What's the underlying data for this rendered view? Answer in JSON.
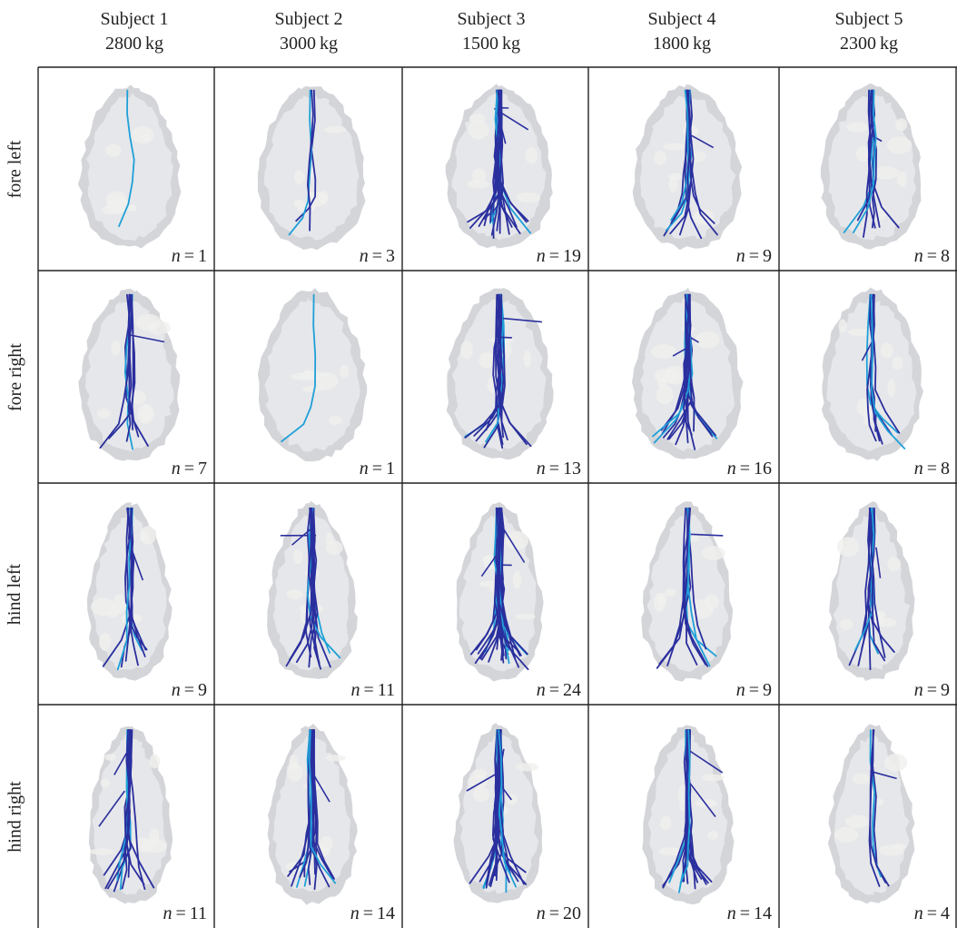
{
  "columns": [
    {
      "subject": "Subject 1",
      "mass": "2800 kg"
    },
    {
      "subject": "Subject 2",
      "mass": "3000 kg"
    },
    {
      "subject": "Subject 3",
      "mass": "1500 kg"
    },
    {
      "subject": "Subject 4",
      "mass": "1800 kg"
    },
    {
      "subject": "Subject 5",
      "mass": "2300 kg"
    }
  ],
  "rows": [
    "fore left",
    "fore right",
    "hind left",
    "hind right"
  ],
  "count_prefix": "n",
  "counts": [
    [
      1,
      3,
      19,
      9,
      8
    ],
    [
      7,
      1,
      13,
      16,
      8
    ],
    [
      9,
      11,
      24,
      9,
      9
    ],
    [
      11,
      14,
      20,
      14,
      4
    ]
  ],
  "colors": {
    "footprint_outer": "#d4d5d9",
    "footprint_inner": "#e6e7ea",
    "footprint_patch": "#f0f0ee",
    "track_dark": "#2a2f9e",
    "track_light": "#1ea0d8",
    "grid_line": "#222222"
  }
}
